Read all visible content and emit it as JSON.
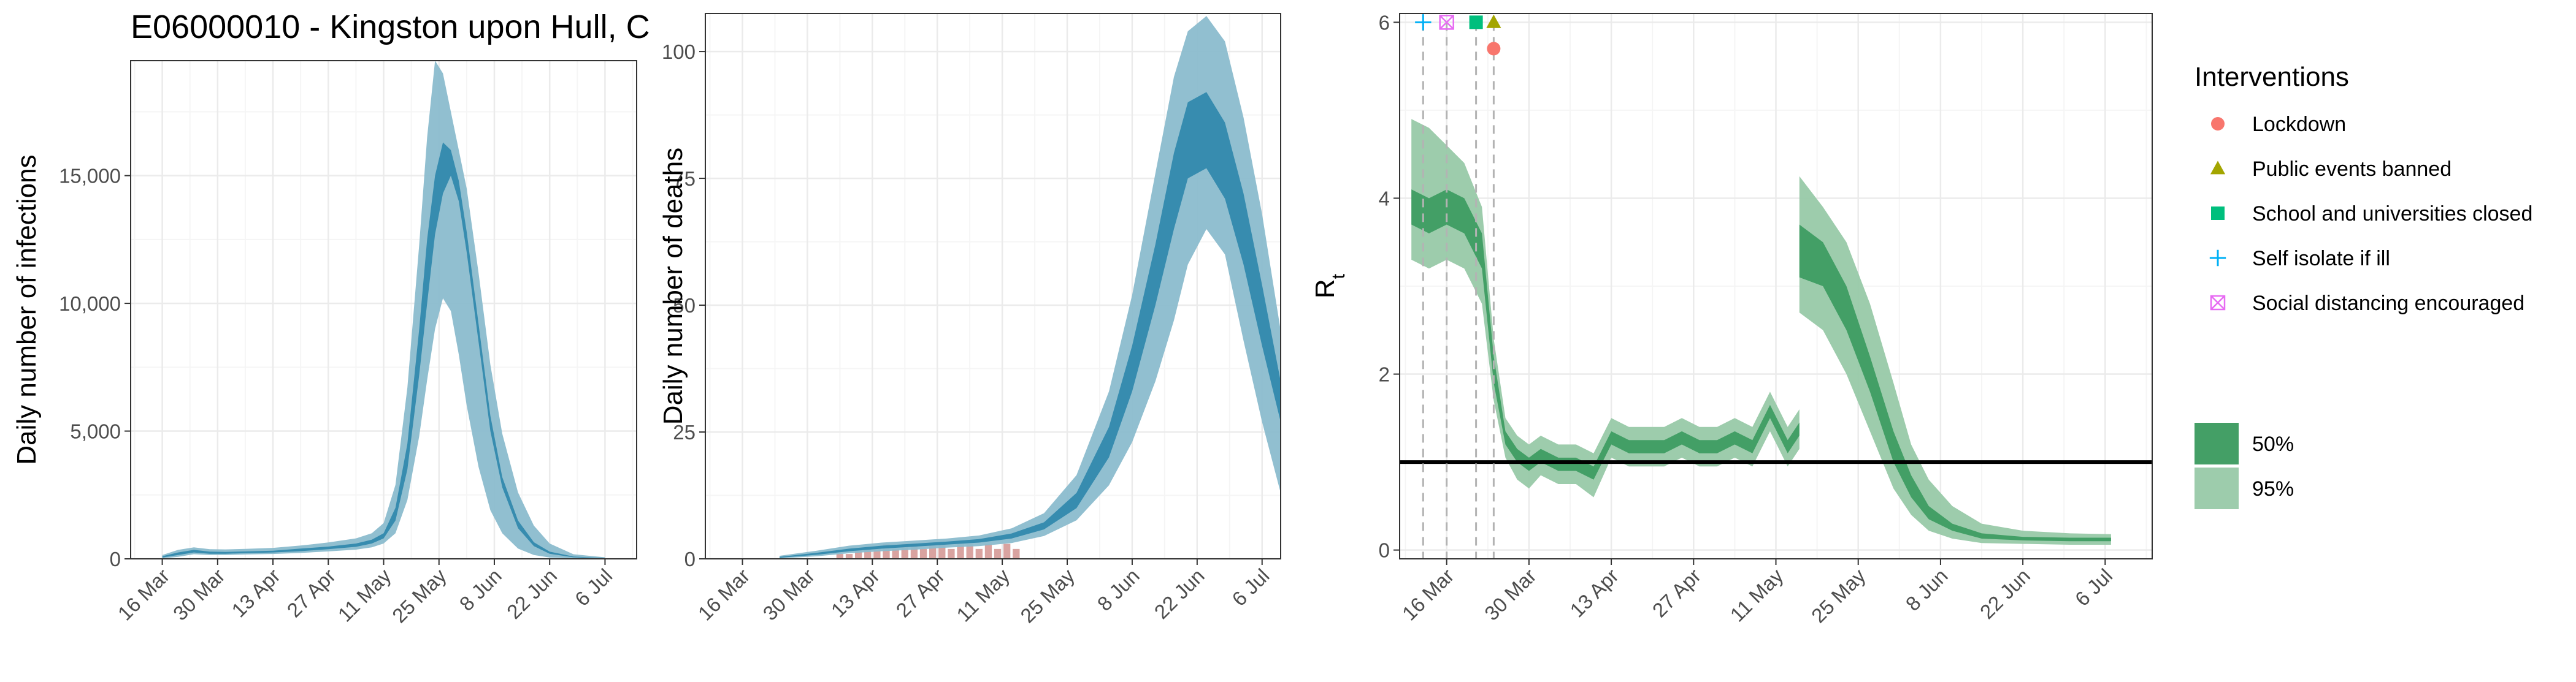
{
  "figure": {
    "title": "E06000010 - Kingston upon Hull, C"
  },
  "colors": {
    "blue_dark": "#2E86AB",
    "blue_light": "#8BBCCD",
    "green_dark": "#3A9A5E",
    "green_light": "#98C9A8",
    "deaths_bar": "#D9A3A0",
    "grid_major": "#EBEBEB",
    "grid_minor": "#F5F5F5",
    "lockdown": "#F8766D",
    "public_events": "#A3A500",
    "schools": "#00BF7D",
    "self_isolate": "#00B0F6",
    "social_distancing": "#E76BF3"
  },
  "chart_data": [
    {
      "type": "area",
      "panel": "infections",
      "ylabel": "Daily number of infections",
      "ylim": [
        0,
        19500
      ],
      "yticks": [
        0,
        5000,
        10000,
        15000
      ],
      "ytick_labels": [
        "0",
        "5,000",
        "10,000",
        "15,000"
      ],
      "xlim": [
        "2020-03-08",
        "2020-07-14"
      ],
      "xticks": [
        "2020-03-16",
        "2020-03-30",
        "2020-04-13",
        "2020-04-27",
        "2020-05-11",
        "2020-05-25",
        "2020-06-08",
        "2020-06-22",
        "2020-07-06"
      ],
      "xtick_labels": [
        "16 Mar",
        "30 Mar",
        "13 Apr",
        "27 Apr",
        "11 May",
        "25 May",
        "8 Jun",
        "22 Jun",
        "6 Jul"
      ],
      "series": [
        {
          "band": "50%",
          "x": [
            "2020-03-16",
            "2020-03-20",
            "2020-03-24",
            "2020-03-28",
            "2020-04-01",
            "2020-04-06",
            "2020-04-13",
            "2020-04-20",
            "2020-04-27",
            "2020-05-04",
            "2020-05-08",
            "2020-05-11",
            "2020-05-14",
            "2020-05-17",
            "2020-05-20",
            "2020-05-22",
            "2020-05-24",
            "2020-05-26",
            "2020-05-28",
            "2020-05-30",
            "2020-06-01",
            "2020-06-04",
            "2020-06-07",
            "2020-06-10",
            "2020-06-14",
            "2020-06-18",
            "2020-06-22",
            "2020-06-28",
            "2020-07-06"
          ],
          "lower": [
            50,
            150,
            250,
            200,
            200,
            220,
            250,
            300,
            380,
            470,
            600,
            800,
            1500,
            3500,
            7200,
            10000,
            12700,
            14300,
            15000,
            14000,
            12000,
            8500,
            5000,
            2800,
            1200,
            500,
            200,
            60,
            20
          ],
          "upper": [
            100,
            250,
            350,
            280,
            270,
            290,
            320,
            400,
            480,
            600,
            750,
            1000,
            2000,
            4500,
            9000,
            12500,
            15000,
            16300,
            16000,
            14800,
            12800,
            9200,
            5600,
            3200,
            1500,
            650,
            280,
            90,
            30
          ]
        },
        {
          "band": "95%",
          "x": [
            "2020-03-16",
            "2020-03-20",
            "2020-03-24",
            "2020-03-28",
            "2020-04-01",
            "2020-04-06",
            "2020-04-13",
            "2020-04-20",
            "2020-04-27",
            "2020-05-04",
            "2020-05-08",
            "2020-05-11",
            "2020-05-14",
            "2020-05-17",
            "2020-05-20",
            "2020-05-22",
            "2020-05-24",
            "2020-05-26",
            "2020-05-28",
            "2020-05-30",
            "2020-06-01",
            "2020-06-04",
            "2020-06-07",
            "2020-06-10",
            "2020-06-14",
            "2020-06-18",
            "2020-06-22",
            "2020-06-28",
            "2020-07-06"
          ],
          "lower": [
            20,
            80,
            180,
            150,
            150,
            170,
            190,
            230,
            290,
            360,
            450,
            600,
            1000,
            2300,
            4800,
            7000,
            9000,
            10200,
            9700,
            8000,
            6000,
            3600,
            1900,
            1000,
            400,
            150,
            50,
            15,
            5
          ],
          "upper": [
            150,
            350,
            450,
            380,
            370,
            390,
            430,
            520,
            640,
            800,
            1000,
            1400,
            2900,
            6700,
            12300,
            16500,
            19500,
            19000,
            17500,
            16000,
            14500,
            11200,
            7600,
            4900,
            2600,
            1300,
            600,
            180,
            60
          ]
        }
      ]
    },
    {
      "type": "area",
      "panel": "deaths",
      "ylabel": "Daily number of deaths",
      "ylim": [
        0,
        107.5
      ],
      "yticks": [
        0,
        25,
        50,
        75,
        100
      ],
      "ytick_labels": [
        "0",
        "25",
        "50",
        "75",
        "100"
      ],
      "xlim": [
        "2020-03-08",
        "2020-07-10"
      ],
      "xticks": [
        "2020-03-16",
        "2020-03-30",
        "2020-04-13",
        "2020-04-27",
        "2020-05-11",
        "2020-05-25",
        "2020-06-08",
        "2020-06-22",
        "2020-07-06"
      ],
      "xtick_labels": [
        "16 Mar",
        "30 Mar",
        "13 Apr",
        "27 Apr",
        "11 May",
        "25 May",
        "8 Jun",
        "22 Jun",
        "6 Jul"
      ],
      "bars": {
        "x": [
          "2020-04-06",
          "2020-04-08",
          "2020-04-10",
          "2020-04-12",
          "2020-04-14",
          "2020-04-16",
          "2020-04-18",
          "2020-04-20",
          "2020-04-22",
          "2020-04-24",
          "2020-04-26",
          "2020-04-28",
          "2020-04-30",
          "2020-05-02",
          "2020-05-04",
          "2020-05-06",
          "2020-05-08",
          "2020-05-10",
          "2020-05-12",
          "2020-05-14"
        ],
        "values": [
          1,
          1,
          2,
          2,
          2,
          3,
          2,
          3,
          3,
          2,
          3,
          3,
          2,
          3,
          3,
          2,
          3,
          2,
          3,
          2
        ]
      },
      "series": [
        {
          "band": "50%",
          "x": [
            "2020-03-24",
            "2020-04-01",
            "2020-04-08",
            "2020-04-15",
            "2020-04-22",
            "2020-04-29",
            "2020-05-06",
            "2020-05-13",
            "2020-05-20",
            "2020-05-27",
            "2020-06-03",
            "2020-06-08",
            "2020-06-13",
            "2020-06-17",
            "2020-06-20",
            "2020-06-24",
            "2020-06-28",
            "2020-07-02",
            "2020-07-06",
            "2020-07-10"
          ],
          "lower": [
            0.2,
            0.8,
            1.5,
            2.0,
            2.4,
            2.8,
            3.2,
            4.0,
            5.8,
            10,
            20,
            33,
            50,
            65,
            75,
            77,
            71,
            58,
            42,
            27
          ],
          "upper": [
            0.4,
            1.2,
            2.0,
            2.6,
            3.0,
            3.4,
            3.9,
            5.0,
            7.2,
            13,
            26,
            42,
            62,
            80,
            90,
            92,
            86,
            72,
            54,
            35
          ]
        },
        {
          "band": "95%",
          "x": [
            "2020-03-24",
            "2020-04-01",
            "2020-04-08",
            "2020-04-15",
            "2020-04-22",
            "2020-04-29",
            "2020-05-06",
            "2020-05-13",
            "2020-05-20",
            "2020-05-27",
            "2020-06-03",
            "2020-06-08",
            "2020-06-13",
            "2020-06-17",
            "2020-06-20",
            "2020-06-24",
            "2020-06-28",
            "2020-07-02",
            "2020-07-06",
            "2020-07-10"
          ],
          "lower": [
            0.1,
            0.5,
            1.1,
            1.5,
            1.8,
            2.2,
            2.5,
            3.1,
            4.5,
            7.6,
            14.5,
            23,
            35,
            47,
            58,
            65,
            60,
            43,
            27,
            13
          ],
          "upper": [
            0.6,
            1.6,
            2.6,
            3.2,
            3.6,
            4.0,
            4.6,
            6.0,
            9.0,
            16.5,
            33,
            52,
            76,
            95,
            104,
            107,
            102,
            87,
            68,
            45
          ]
        }
      ]
    },
    {
      "type": "area",
      "panel": "rt",
      "ylabel": "R",
      "ylabel_sub": "t",
      "ylim": [
        -0.1,
        6.1
      ],
      "yticks": [
        0,
        2,
        4,
        6
      ],
      "ytick_labels": [
        "0",
        "2",
        "4",
        "6"
      ],
      "xlim": [
        "2020-03-08",
        "2020-07-14"
      ],
      "xticks": [
        "2020-03-16",
        "2020-03-30",
        "2020-04-13",
        "2020-04-27",
        "2020-05-11",
        "2020-05-25",
        "2020-06-08",
        "2020-06-22",
        "2020-07-06"
      ],
      "xtick_labels": [
        "16 Mar",
        "30 Mar",
        "13 Apr",
        "27 Apr",
        "11 May",
        "25 May",
        "8 Jun",
        "22 Jun",
        "6 Jul"
      ],
      "reference_line": 1,
      "interventions": [
        {
          "name": "Self isolate if ill",
          "date": "2020-03-12",
          "symbol": "plus"
        },
        {
          "name": "Social distancing encouraged",
          "date": "2020-03-16",
          "symbol": "boxx"
        },
        {
          "name": "School and universities closed",
          "date": "2020-03-21",
          "symbol": "square"
        },
        {
          "name": "Public events banned",
          "date": "2020-03-24",
          "symbol": "triangle"
        },
        {
          "name": "Lockdown",
          "date": "2020-03-24",
          "symbol": "circle",
          "offset": 1
        }
      ],
      "series": [
        {
          "band": "50%",
          "x": [
            "2020-03-10",
            "2020-03-13",
            "2020-03-16",
            "2020-03-19",
            "2020-03-22",
            "2020-03-24",
            "2020-03-26",
            "2020-03-28",
            "2020-03-30",
            "2020-04-01",
            "2020-04-04",
            "2020-04-07",
            "2020-04-10",
            "2020-04-13",
            "2020-04-16",
            "2020-04-19",
            "2020-04-22",
            "2020-04-25",
            "2020-04-28",
            "2020-05-01",
            "2020-05-04",
            "2020-05-07",
            "2020-05-10",
            "2020-05-13",
            "2020-05-15",
            "2020-05-15",
            "2020-05-19",
            "2020-05-23",
            "2020-05-27",
            "2020-05-31",
            "2020-06-03",
            "2020-06-06",
            "2020-06-10",
            "2020-06-15",
            "2020-06-22",
            "2020-06-30",
            "2020-07-07"
          ],
          "lower": [
            3.7,
            3.6,
            3.7,
            3.6,
            3.2,
            1.9,
            1.2,
            1.0,
            0.9,
            1.0,
            0.9,
            0.9,
            0.8,
            1.2,
            1.1,
            1.1,
            1.1,
            1.2,
            1.1,
            1.1,
            1.2,
            1.1,
            1.5,
            1.1,
            1.3,
            3.1,
            3.0,
            2.5,
            1.8,
            1.0,
            0.6,
            0.35,
            0.22,
            0.13,
            0.11,
            0.1,
            0.1
          ],
          "upper": [
            4.1,
            4.0,
            4.1,
            4.0,
            3.6,
            2.2,
            1.35,
            1.15,
            1.05,
            1.15,
            1.05,
            1.05,
            0.95,
            1.35,
            1.25,
            1.25,
            1.25,
            1.35,
            1.25,
            1.25,
            1.35,
            1.25,
            1.65,
            1.25,
            1.45,
            3.7,
            3.5,
            3.0,
            2.2,
            1.35,
            0.85,
            0.5,
            0.3,
            0.19,
            0.15,
            0.14,
            0.14
          ]
        },
        {
          "band": "95%",
          "x": [
            "2020-03-10",
            "2020-03-13",
            "2020-03-16",
            "2020-03-19",
            "2020-03-22",
            "2020-03-24",
            "2020-03-26",
            "2020-03-28",
            "2020-03-30",
            "2020-04-01",
            "2020-04-04",
            "2020-04-07",
            "2020-04-10",
            "2020-04-13",
            "2020-04-16",
            "2020-04-19",
            "2020-04-22",
            "2020-04-25",
            "2020-04-28",
            "2020-05-01",
            "2020-05-04",
            "2020-05-07",
            "2020-05-10",
            "2020-05-13",
            "2020-05-15",
            "2020-05-15",
            "2020-05-19",
            "2020-05-23",
            "2020-05-27",
            "2020-05-31",
            "2020-06-03",
            "2020-06-06",
            "2020-06-10",
            "2020-06-15",
            "2020-06-22",
            "2020-06-30",
            "2020-07-07"
          ],
          "lower": [
            3.3,
            3.2,
            3.3,
            3.2,
            2.8,
            1.7,
            1.05,
            0.8,
            0.7,
            0.85,
            0.75,
            0.75,
            0.6,
            1.05,
            0.95,
            0.95,
            0.95,
            1.05,
            0.95,
            0.95,
            1.05,
            0.95,
            1.35,
            0.95,
            1.15,
            2.7,
            2.5,
            2.0,
            1.35,
            0.7,
            0.4,
            0.22,
            0.13,
            0.08,
            0.07,
            0.06,
            0.06
          ],
          "upper": [
            4.9,
            4.8,
            4.6,
            4.4,
            3.9,
            2.4,
            1.5,
            1.3,
            1.2,
            1.3,
            1.2,
            1.2,
            1.1,
            1.5,
            1.4,
            1.4,
            1.4,
            1.5,
            1.4,
            1.4,
            1.5,
            1.4,
            1.8,
            1.4,
            1.6,
            4.25,
            3.9,
            3.5,
            2.8,
            1.9,
            1.2,
            0.8,
            0.5,
            0.3,
            0.22,
            0.19,
            0.18
          ]
        }
      ]
    }
  ],
  "legend": {
    "interventions_title": "Interventions",
    "interventions": [
      {
        "label": "Lockdown",
        "symbol": "circle"
      },
      {
        "label": "Public events banned",
        "symbol": "triangle"
      },
      {
        "label": "School and universities closed",
        "symbol": "square"
      },
      {
        "label": "Self isolate if ill",
        "symbol": "plus"
      },
      {
        "label": "Social distancing encouraged",
        "symbol": "boxx"
      }
    ],
    "bands": [
      {
        "label": "50%"
      },
      {
        "label": "95%"
      }
    ]
  }
}
